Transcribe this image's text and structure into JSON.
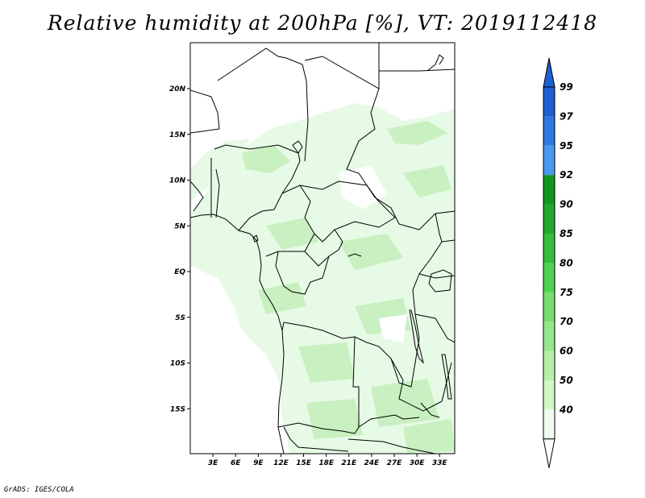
{
  "title": "Relative humidity at 200hPa [%], VT: 2019112418",
  "credit": "GrADS: IGES/COLA",
  "map": {
    "lat_ticks": [
      {
        "lat": 20,
        "label": "20N"
      },
      {
        "lat": 15,
        "label": "15N"
      },
      {
        "lat": 10,
        "label": "10N"
      },
      {
        "lat": 5,
        "label": "5N"
      },
      {
        "lat": 0,
        "label": "EQ"
      },
      {
        "lat": -5,
        "label": "5S"
      },
      {
        "lat": -10,
        "label": "10S"
      },
      {
        "lat": -15,
        "label": "15S"
      }
    ],
    "lon_ticks": [
      {
        "lon": 3,
        "label": "3E"
      },
      {
        "lon": 6,
        "label": "6E"
      },
      {
        "lon": 9,
        "label": "9E"
      },
      {
        "lon": 12,
        "label": "12E"
      },
      {
        "lon": 15,
        "label": "15E"
      },
      {
        "lon": 18,
        "label": "18E"
      },
      {
        "lon": 21,
        "label": "21E"
      },
      {
        "lon": 24,
        "label": "24E"
      },
      {
        "lon": 27,
        "label": "27E"
      },
      {
        "lon": 30,
        "label": "30E"
      },
      {
        "lon": 33,
        "label": "33E"
      }
    ],
    "field_color_light": "#e6fae6",
    "field_color_mid": "#c8f0c0"
  },
  "colorbar": {
    "levels": [
      {
        "label": "99",
        "color": "#1e5fd2"
      },
      {
        "label": "97",
        "color": "#2e78e0"
      },
      {
        "label": "95",
        "color": "#4a98f0"
      },
      {
        "label": "92",
        "color": "#14961e"
      },
      {
        "label": "90",
        "color": "#23a82d"
      },
      {
        "label": "85",
        "color": "#37bd3c"
      },
      {
        "label": "80",
        "color": "#50d250"
      },
      {
        "label": "75",
        "color": "#78dc6e"
      },
      {
        "label": "70",
        "color": "#96e68c"
      },
      {
        "label": "60",
        "color": "#b4f0aa"
      },
      {
        "label": "50",
        "color": "#d2f8c8"
      },
      {
        "label": "40",
        "color": "#f0fcf0"
      }
    ],
    "top_arrow_color": "#1e5fd2",
    "bottom_arrow_color": "#ffffff"
  }
}
